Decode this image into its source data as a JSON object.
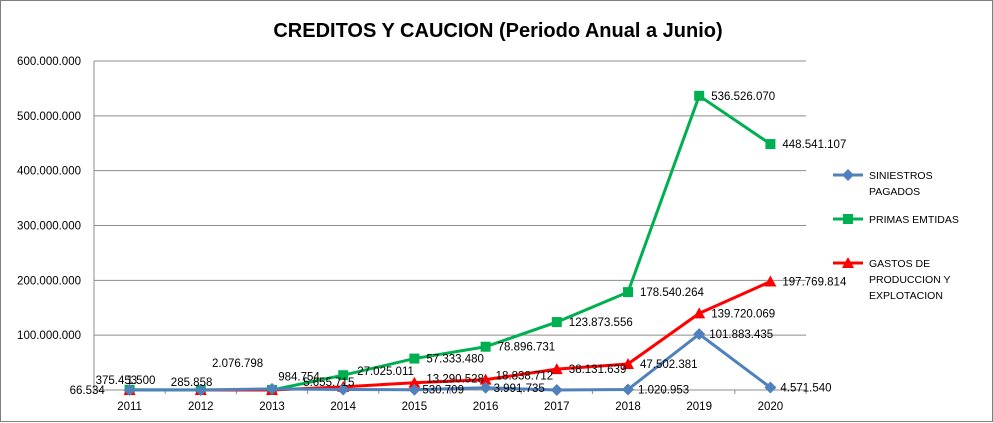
{
  "chart_data": {
    "type": "line",
    "title": "CREDITOS Y CAUCION (Periodo Anual a Junio)",
    "xlabel": "",
    "ylabel": "",
    "categories": [
      "2011",
      "2012",
      "2013",
      "2014",
      "2015",
      "2016",
      "2017",
      "2018",
      "2019",
      "2020"
    ],
    "ylim": [
      0,
      600000000
    ],
    "y_ticks": [
      "600.000.000",
      "500.000.000",
      "400.000.000",
      "300.000.000",
      "200.000.000",
      "100.000.000"
    ],
    "grid": true,
    "legend_position": "right",
    "series": [
      {
        "name": "SINIESTROS PAGADOS",
        "color": "#4f81bd",
        "marker": "diamond",
        "values": [
          66534,
          0,
          2076798,
          984754,
          530709,
          3991735,
          0,
          1020953,
          101883435,
          4571540
        ],
        "labels": [
          "66.534",
          "",
          "2.076.798",
          "984.754",
          "530.709",
          "3.991.735",
          "",
          "1.020.953",
          "101.883.435",
          "4.571.540"
        ]
      },
      {
        "name": "PRIMAS EMTIDAS",
        "color": "#00b050",
        "marker": "square",
        "values": [
          375453,
          285858,
          0,
          27025011,
          57333480,
          78896731,
          123873556,
          178540264,
          536526070,
          448541107
        ],
        "labels": [
          "375.453",
          "285.858",
          "",
          "27.025.011",
          "57.333.480",
          "78.896.731",
          "123.873.556",
          "178.540.264",
          "536.526.070",
          "448.541.107"
        ]
      },
      {
        "name": "GASTOS DE PRODUCCION Y EXPLOTACION",
        "color": "#ff0000",
        "marker": "triangle",
        "values": [
          1500,
          0,
          0,
          5655715,
          13290528,
          18838712,
          38131639,
          47502381,
          139720069,
          197769814
        ],
        "labels": [
          "1.500",
          "",
          "",
          "5.655.715",
          "13.290.528",
          "18.838.712",
          "38.131.639",
          "47.502.381",
          "139.720.069",
          "197.769.814"
        ]
      }
    ],
    "legend": [
      {
        "lines": [
          "SINIESTROS",
          "PAGADOS"
        ]
      },
      {
        "lines": [
          "PRIMAS EMTIDAS"
        ]
      },
      {
        "lines": [
          "GASTOS DE",
          "PRODUCCION Y",
          "EXPLOTACION"
        ]
      }
    ]
  }
}
